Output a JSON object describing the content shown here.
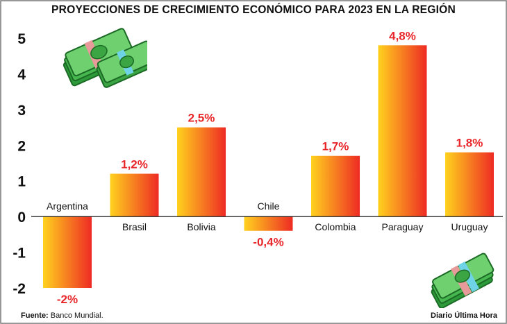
{
  "chart_data": {
    "type": "bar",
    "title": "PROYECCIONES DE CRECIMIENTO ECONÓMICO PARA 2023 EN LA REGIÓN",
    "categories": [
      "Argentina",
      "Brasil",
      "Bolivia",
      "Chile",
      "Colombia",
      "Paraguay",
      "Uruguay"
    ],
    "values": [
      -2,
      1.2,
      2.5,
      -0.4,
      1.7,
      4.8,
      1.8
    ],
    "value_labels": [
      "-2%",
      "1,2%",
      "2,5%",
      "-0,4%",
      "1,7%",
      "4,8%",
      "1,8%"
    ],
    "ylim": [
      -2,
      5
    ],
    "yticks": [
      "5",
      "4",
      "3",
      "2",
      "1",
      "0",
      "-1",
      "-2"
    ],
    "ytick_values": [
      5,
      4,
      3,
      2,
      1,
      0,
      -1,
      -2
    ],
    "xlabel": "",
    "ylabel": "",
    "grid": false,
    "bar_gradient": [
      "#ffd21e",
      "#ee2b24"
    ],
    "label_color": "#e8262a"
  },
  "source": {
    "label": "Fuente:",
    "text": "Banco Mundial."
  },
  "credit": "Diario Última Hora",
  "decor": {
    "top_left": "money-stack-icon",
    "bottom_right": "money-bundle-icon"
  }
}
